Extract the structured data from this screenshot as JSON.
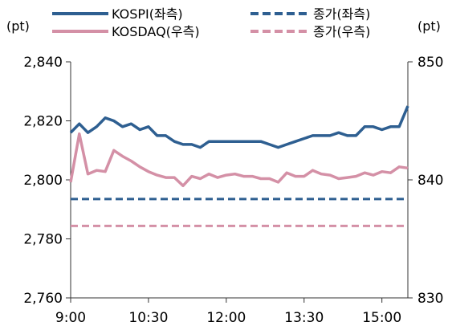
{
  "chart_data": {
    "type": "line",
    "left_unit": "(pt)",
    "right_unit": "(pt)",
    "x_ticks": [
      "9:00",
      "10:30",
      "12:00",
      "13:30",
      "15:00"
    ],
    "x_range_minutes": [
      540,
      930
    ],
    "y_left": {
      "ticks": [
        "2,760",
        "2,780",
        "2,800",
        "2,820",
        "2,840"
      ],
      "range": [
        2760,
        2840
      ]
    },
    "y_right": {
      "ticks": [
        "830",
        "840",
        "850"
      ],
      "range": [
        830,
        850
      ]
    },
    "grid": false,
    "legend_placement": "top",
    "series": [
      {
        "name": "KOSPI(좌측)",
        "axis": "left",
        "color": "#2e5f91",
        "style": "solid",
        "x": [
          "9:00",
          "9:10",
          "9:20",
          "9:30",
          "9:40",
          "9:50",
          "10:00",
          "10:10",
          "10:20",
          "10:30",
          "10:40",
          "10:50",
          "11:00",
          "11:10",
          "11:20",
          "11:30",
          "11:40",
          "11:50",
          "12:00",
          "12:10",
          "12:20",
          "12:30",
          "12:40",
          "12:50",
          "13:00",
          "13:10",
          "13:20",
          "13:30",
          "13:40",
          "13:50",
          "14:00",
          "14:10",
          "14:20",
          "14:30",
          "14:40",
          "14:50",
          "15:00",
          "15:10",
          "15:20",
          "15:30"
        ],
        "values": [
          2816,
          2819,
          2816,
          2818,
          2821,
          2820,
          2818,
          2819,
          2817,
          2818,
          2815,
          2815,
          2813,
          2812,
          2812,
          2811,
          2813,
          2813,
          2813,
          2813,
          2813,
          2813,
          2813,
          2812,
          2811,
          2812,
          2813,
          2814,
          2815,
          2815,
          2815,
          2816,
          2815,
          2815,
          2818,
          2818,
          2817,
          2818,
          2818,
          2825
        ]
      },
      {
        "name": "KOSDAQ(우측)",
        "axis": "right",
        "color": "#d490a6",
        "style": "solid",
        "x": [
          "9:00",
          "9:10",
          "9:20",
          "9:30",
          "9:40",
          "9:50",
          "10:00",
          "10:10",
          "10:20",
          "10:30",
          "10:40",
          "10:50",
          "11:00",
          "11:10",
          "11:20",
          "11:30",
          "11:40",
          "11:50",
          "12:00",
          "12:10",
          "12:20",
          "12:30",
          "12:40",
          "12:50",
          "13:00",
          "13:10",
          "13:20",
          "13:30",
          "13:40",
          "13:50",
          "14:00",
          "14:10",
          "14:20",
          "14:30",
          "14:40",
          "14:50",
          "15:00",
          "15:10",
          "15:20",
          "15:30"
        ],
        "values": [
          839.8,
          843.9,
          840.5,
          840.8,
          840.7,
          842.5,
          842.0,
          841.6,
          841.1,
          840.7,
          840.4,
          840.2,
          840.2,
          839.5,
          840.3,
          840.1,
          840.5,
          840.2,
          840.4,
          840.5,
          840.3,
          840.3,
          840.1,
          840.1,
          839.8,
          840.6,
          840.3,
          840.3,
          840.8,
          840.5,
          840.4,
          840.1,
          840.2,
          840.3,
          840.6,
          840.4,
          840.7,
          840.6,
          841.1,
          841.0
        ]
      },
      {
        "name": "종가(좌측)",
        "axis": "left",
        "color": "#2e5f91",
        "style": "dashed",
        "constant": 2793.5
      },
      {
        "name": "종가(우측)",
        "axis": "right",
        "color": "#d490a6",
        "style": "dashed",
        "constant": 836.1
      }
    ]
  }
}
